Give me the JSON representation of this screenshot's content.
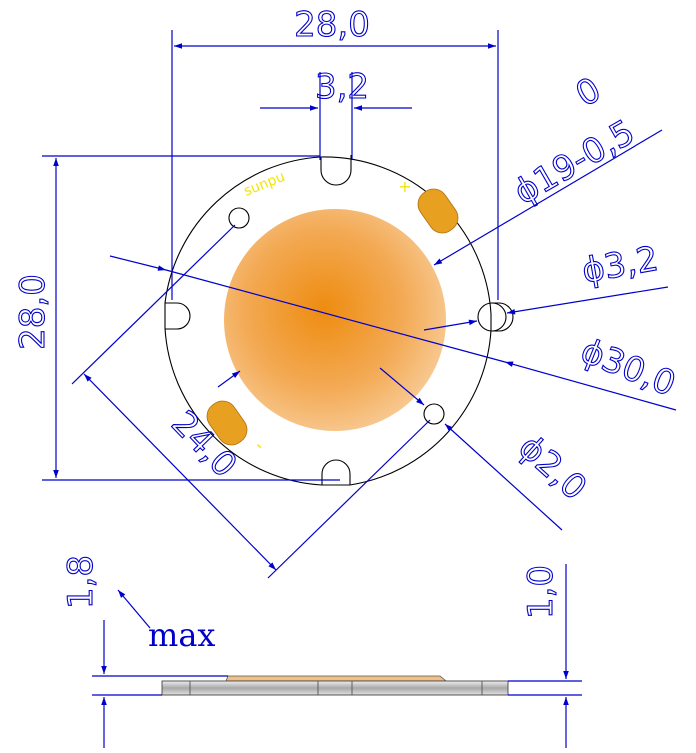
{
  "dimensions": {
    "width_top": "28,0",
    "slot_width": "3,2",
    "height_left": "28,0",
    "les_tol_upper": "0",
    "les_diameter": "ϕ19-0,5",
    "hole_diameter": "ϕ3,2",
    "board_diameter": "ϕ30,0",
    "mount_hole_diameter": "ϕ2,0",
    "hole_spacing": "24,0",
    "total_height": "1,8",
    "total_height_note": "max",
    "board_thickness": "1,0"
  },
  "labels": {
    "brand": "sunpu",
    "plus": "+",
    "minus": "-"
  },
  "colors": {
    "dimension": "#0000cc",
    "outline": "#000000",
    "les_center": "#ee8c10",
    "les_edge": "#f8c890",
    "pad": "#e8a020",
    "brand": "#f2e600"
  }
}
